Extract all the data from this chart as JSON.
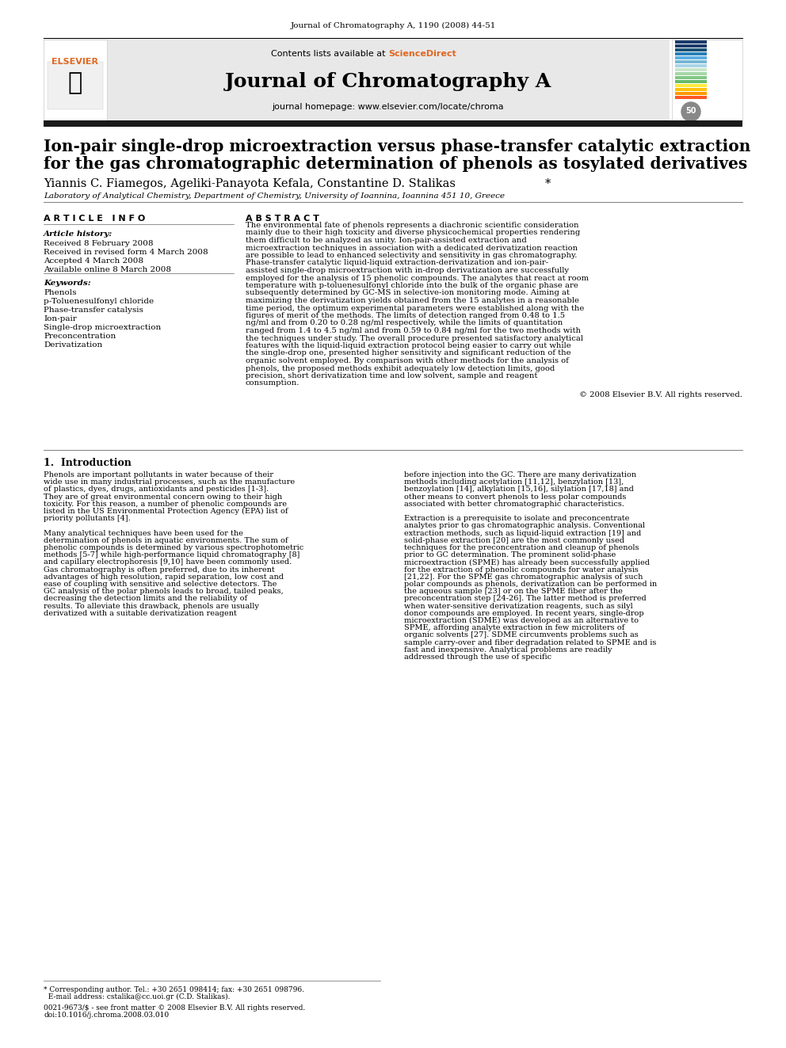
{
  "journal_ref": "Journal of Chromatography A, 1190 (2008) 44-51",
  "journal_name": "Journal of Chromatography A",
  "journal_homepage": "journal homepage: www.elsevier.com/locate/chroma",
  "contents_line": "Contents lists available at ScienceDirect",
  "title": "Ion-pair single-drop microextraction versus phase-transfer catalytic extraction\nfor the gas chromatographic determination of phenols as tosylated derivatives",
  "authors": "Yiannis C. Fiamegos, Ageliki-Panayota Kefala, Constantine D. Stalikas*",
  "affiliation": "Laboratory of Analytical Chemistry, Department of Chemistry, University of Ioannina, Ioannina 451 10, Greece",
  "article_info_header": "A R T I C L E   I N F O",
  "abstract_header": "A B S T R A C T",
  "article_history_label": "Article history:",
  "received": "Received 8 February 2008",
  "received_revised": "Received in revised form 4 March 2008",
  "accepted": "Accepted 4 March 2008",
  "available": "Available online 8 March 2008",
  "keywords_label": "Keywords:",
  "keywords": [
    "Phenols",
    "p-Toluenesulfonyl chloride",
    "Phase-transfer catalysis",
    "Ion-pair",
    "Single-drop microextraction",
    "Preconcentration",
    "Derivatization"
  ],
  "abstract_text": "The environmental fate of phenols represents a diachronic scientific consideration mainly due to their high toxicity and diverse physicochemical properties rendering them difficult to be analyzed as unity. Ion-pair-assisted extraction and microextraction techniques in association with a dedicated derivatization reaction are possible to lead to enhanced selectivity and sensitivity in gas chromatography. Phase-transfer catalytic liquid-liquid extraction-derivatization and ion-pair-assisted single-drop microextraction with in-drop derivatization are successfully employed for the analysis of 15 phenolic compounds. The analytes that react at room temperature with p-toluenesulfonyl chloride into the bulk of the organic phase are subsequently determined by GC-MS in selective-ion monitoring mode. Aiming at maximizing the derivatization yields obtained from the 15 analytes in a reasonable time period, the optimum experimental parameters were established along with the figures of merit of the methods. The limits of detection ranged from 0.48 to 1.5 ng/ml and from 0.20 to 0.28 ng/ml respectively, while the limits of quantitation ranged from 1.4 to 4.5 ng/ml and from 0.59 to 0.84 ng/ml for the two methods with the techniques under study. The overall procedure presented satisfactory analytical features with the liquid-liquid extraction protocol being easier to carry out while the single-drop one, presented higher sensitivity and significant reduction of the organic solvent employed. By comparison with other methods for the analysis of phenols, the proposed methods exhibit adequately low detection limits, good precision, short derivatization time and low solvent, sample and reagent consumption.",
  "copyright": "© 2008 Elsevier B.V. All rights reserved.",
  "section1_title": "1. Introduction",
  "intro_col1": "Phenols are important pollutants in water because of their wide use in many industrial processes, such as the manufacture of plastics, dyes, drugs, antioxidants and pesticides [1-3]. They are of great environmental concern owing to their high toxicity. For this reason, a number of phenolic compounds are listed in the US Environmental Protection Agency (EPA) list of priority pollutants [4].\n   Many analytical techniques have been used for the determination of phenols in aquatic environments. The sum of phenolic compounds is determined by various spectrophotometric methods [5-7] while high-performance liquid chromatography [8] and capillary electrophoresis [9,10] have been commonly used. Gas chromatography is often preferred, due to its inherent advantages of high resolution, rapid separation, low cost and ease of coupling with sensitive and selective detectors. The GC analysis of the polar phenols leads to broad, tailed peaks, decreasing the detection limits and the reliability of results. To alleviate this drawback, phenols are usually derivatized with a suitable derivatization reagent",
  "intro_col2": "before injection into the GC. There are many derivatization methods including acetylation [11,12], benzylation [13], benzoylation [14], alkylation [15,16], silylation [17,18] and other means to convert phenols to less polar compounds associated with better chromatographic characteristics.\n   Extraction is a prerequisite to isolate and preconcentrate analytes prior to gas chromatographic analysis. Conventional extraction methods, such as liquid-liquid extraction [19] and solid-phase extraction [20] are the most commonly used techniques for the preconcentration and cleanup of phenols prior to GC determination. The prominent solid-phase microextraction (SPME) has already been successfully applied for the extraction of phenolic compounds for water analysis [21,22]. For the SPME gas chromatographic analysis of such polar compounds as phenols, derivatization can be performed in the aqueous sample [23] or on the SPME fiber after the preconcentration step [24-26]. The latter method is preferred when water-sensitive derivatization reagents, such as silyl donor compounds are employed. In recent years, single-drop microextraction (SDME) was developed as an alternative to SPME, affording analyte extraction in few microliters of organic solvents [27]. SDME circumvents problems such as sample carry-over and fiber degradation related to SPME and is fast and inexpensive. Analytical problems are readily addressed through the use of specific",
  "footnote": "* Corresponding author. Tel.: +30 2651 098414; fax: +30 2651 098796.\n  E-mail address: cstalika@cc.uoi.gr (C.D. Stalikas).",
  "issn_line": "0021-9673/$ - see front matter © 2008 Elsevier B.V. All rights reserved.\ndoi:10.1016/j.chroma.2008.03.010",
  "bg_color": "#ffffff",
  "header_bg": "#e8e8e8",
  "dark_bar": "#2c2c2c",
  "blue_color": "#1a5276",
  "sciencedirect_color": "#e67e22",
  "elsevier_orange": "#f39c12"
}
